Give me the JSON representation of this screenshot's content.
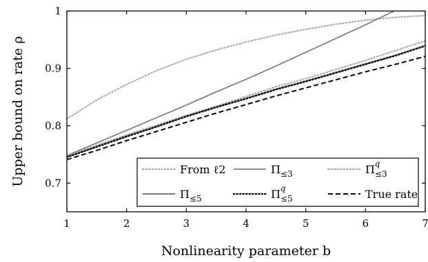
{
  "chart_data": {
    "type": "line",
    "xlabel": "Nonlinearity parameter b",
    "ylabel": "Upper bound on rate ρ",
    "xlim": [
      1,
      7
    ],
    "ylim": [
      0.65,
      1.0
    ],
    "xticks": [
      "1",
      "2",
      "3",
      "4",
      "5",
      "6",
      "7"
    ],
    "yticks": [
      "0.7",
      "0.8",
      "0.9",
      "1"
    ],
    "ytick_values": [
      0.7,
      0.8,
      0.9,
      1.0
    ],
    "grid": false,
    "legend_position": "lower-right",
    "x": [
      1,
      1.5,
      2,
      2.5,
      3,
      3.5,
      4,
      4.5,
      5,
      5.5,
      6,
      6.5,
      7
    ],
    "series": [
      {
        "name": "From ℓ2",
        "color": "#aaaaaa",
        "dash": "dotted",
        "values": [
          0.812,
          0.845,
          0.872,
          0.896,
          0.916,
          0.932,
          0.946,
          0.958,
          0.968,
          0.977,
          0.984,
          0.989,
          0.992
        ]
      },
      {
        "name": "Π≤3",
        "color": "#808080",
        "dash": "solid",
        "values": [
          0.748,
          0.77,
          0.792,
          0.814,
          0.836,
          0.859,
          0.881,
          0.904,
          0.928,
          0.952,
          0.976,
          1.001,
          1.025
        ]
      },
      {
        "name": "Π≤3 q",
        "color": "#aaaaaa",
        "dash": "dotted",
        "values": [
          0.747,
          0.766,
          0.784,
          0.801,
          0.818,
          0.834,
          0.851,
          0.868,
          0.882,
          0.898,
          0.914,
          0.931,
          0.948
        ]
      },
      {
        "name": "Π≤5",
        "color": "#666666",
        "dash": "solid",
        "values": [
          0.746,
          0.764,
          0.782,
          0.799,
          0.817,
          0.833,
          0.848,
          0.864,
          0.878,
          0.893,
          0.908,
          0.923,
          0.94
        ]
      },
      {
        "name": "Π≤5 q",
        "color": "#000000",
        "dash": "dotted",
        "values": [
          0.745,
          0.763,
          0.781,
          0.798,
          0.816,
          0.832,
          0.847,
          0.863,
          0.877,
          0.892,
          0.907,
          0.922,
          0.939
        ]
      },
      {
        "name": "True rate",
        "color": "#000000",
        "dash": "dashed",
        "values": [
          0.741,
          0.757,
          0.774,
          0.79,
          0.806,
          0.822,
          0.837,
          0.852,
          0.866,
          0.88,
          0.894,
          0.907,
          0.921
        ]
      }
    ]
  }
}
